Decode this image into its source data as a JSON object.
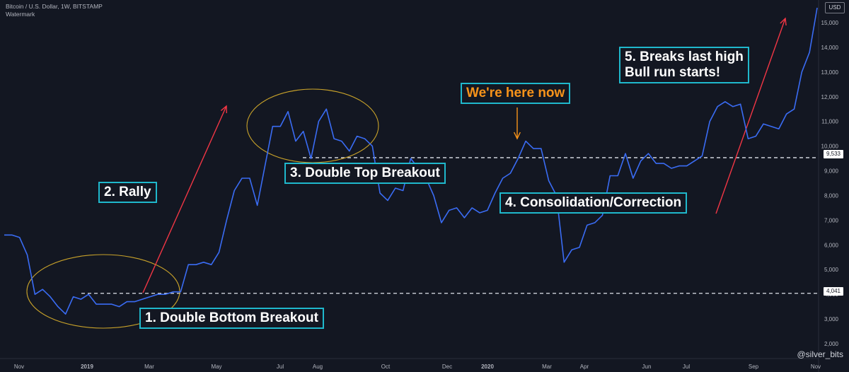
{
  "header": {
    "symbol_line": "Bitcoin / U.S. Dollar, 1W, BITSTAMP",
    "watermark": "Watermark",
    "currency": "USD"
  },
  "annotations": {
    "double_bottom": "1. Double Bottom Breakout",
    "rally": "2. Rally",
    "double_top": "3. Double Top Breakout",
    "consolidation": "4. Consolidation/Correction",
    "breaks_line1": "5. Breaks last high",
    "breaks_line2": "Bull run starts!",
    "here_now": "We're here now"
  },
  "credit": "@silver_bits",
  "colors": {
    "background": "#131722",
    "price_line": "#3a6cf4",
    "box_border": "#1fb8cc",
    "ellipse": "#c8a22a",
    "arrow_red": "#f23645",
    "arrow_orange": "#f7931a",
    "dashed": "#e0e3eb",
    "axis_text": "#b2b5be"
  },
  "chart_data": {
    "type": "line",
    "title": "Bitcoin / U.S. Dollar, 1W, BITSTAMP",
    "ylabel": "USD",
    "ylim": [
      1600,
      15600
    ],
    "x_tick_labels": [
      "Nov",
      "2019",
      "Mar",
      "May",
      "Jul",
      "Aug",
      "Oct",
      "Dec",
      "2020",
      "Mar",
      "Apr",
      "Jun",
      "Jul",
      "Sep",
      "Nov"
    ],
    "y_tick_values": [
      2000,
      3000,
      4000,
      5000,
      6000,
      7000,
      8000,
      9000,
      10000,
      11000,
      12000,
      13000,
      14000,
      15000
    ],
    "y_tick_labels": [
      "2,000",
      "3,000",
      "4,000",
      "5,000",
      "6,000",
      "7,000",
      "8,000",
      "9,000",
      "10,000",
      "11,000",
      "12,000",
      "13,000",
      "14,000",
      "15,000"
    ],
    "grid": false,
    "series": [
      {
        "values": [
          6400,
          6400,
          6300,
          5600,
          4000,
          4200,
          3900,
          3500,
          3200,
          3900,
          3800,
          4000,
          3600,
          3600,
          3600,
          3500,
          3700,
          3700,
          3800,
          3900,
          4000,
          4000,
          4100,
          4100,
          5200,
          5200,
          5300,
          5200,
          5700,
          7000,
          8200,
          8700,
          8700,
          7600,
          9200,
          10800,
          10800,
          11400,
          10200,
          10600,
          9500,
          11000,
          11500,
          10300,
          10200,
          9800,
          10400,
          10300,
          10000,
          8100,
          7800,
          8300,
          8200,
          9500,
          9100,
          8700,
          8000,
          6900,
          7400,
          7500,
          7100,
          7500,
          7300,
          7400,
          8100,
          8700,
          8900,
          9500,
          10200,
          9900,
          9900,
          8600,
          8000,
          5300,
          5800,
          5900,
          6800,
          6900,
          7200,
          8800,
          8800,
          9700,
          8700,
          9400,
          9700,
          9300,
          9300,
          9100,
          9200,
          9200,
          9400,
          9600,
          11000,
          11600,
          11800,
          11600,
          11700,
          10300,
          10400,
          10900,
          10800,
          10700,
          11300,
          11500,
          13000,
          13800,
          15600
        ]
      }
    ],
    "levels": [
      {
        "label": "4,041",
        "value": 4041
      },
      {
        "label": "9,533",
        "value": 9533
      }
    ]
  }
}
